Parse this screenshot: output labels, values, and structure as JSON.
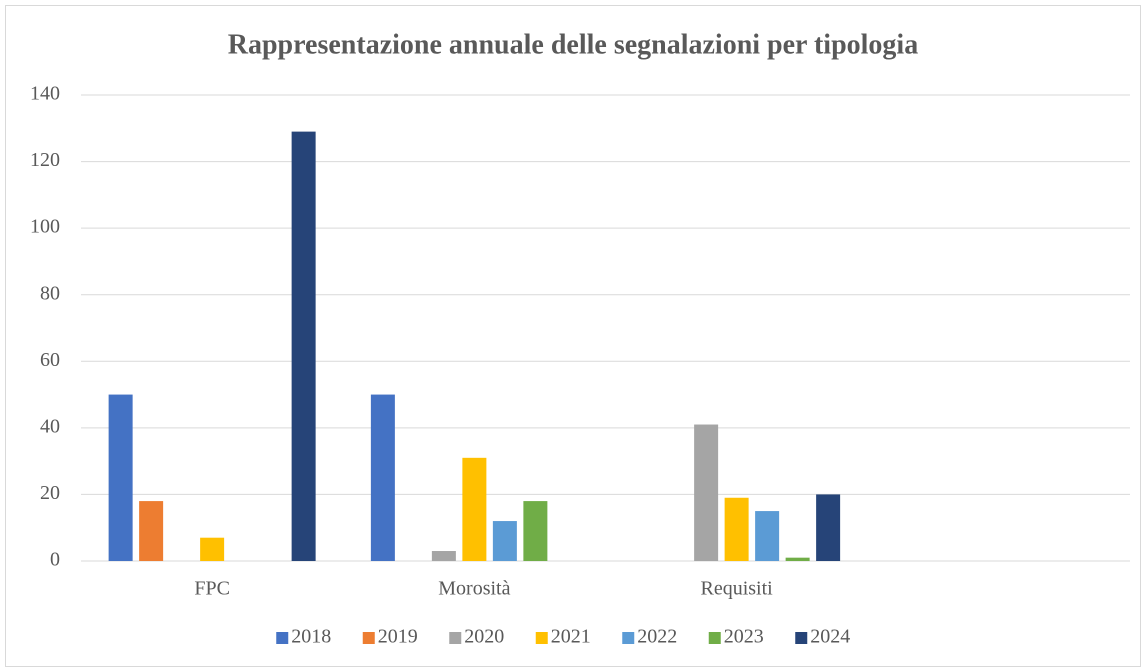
{
  "chart_data": {
    "type": "bar",
    "title": "Rappresentazione annuale delle segnalazioni per tipologia",
    "categories": [
      "FPC",
      "Morosità",
      "Requisiti",
      null
    ],
    "series": [
      {
        "name": "2018",
        "color": "#4472c4",
        "values": [
          50,
          50,
          null,
          null
        ]
      },
      {
        "name": "2019",
        "color": "#ed7d31",
        "values": [
          18,
          null,
          null,
          null
        ]
      },
      {
        "name": "2020",
        "color": "#a5a5a5",
        "values": [
          null,
          3,
          41,
          null
        ]
      },
      {
        "name": "2021",
        "color": "#ffc000",
        "values": [
          7,
          31,
          19,
          null
        ]
      },
      {
        "name": "2022",
        "color": "#5b9bd5",
        "values": [
          null,
          12,
          15,
          null
        ]
      },
      {
        "name": "2023",
        "color": "#70ad47",
        "values": [
          null,
          18,
          1,
          null
        ]
      },
      {
        "name": "2024",
        "color": "#264478",
        "values": [
          129,
          null,
          20,
          null
        ]
      }
    ],
    "ylim": [
      0,
      140
    ],
    "yticks": [
      0,
      20,
      40,
      60,
      80,
      100,
      120,
      140
    ],
    "grid": true,
    "legend": "bottom"
  }
}
